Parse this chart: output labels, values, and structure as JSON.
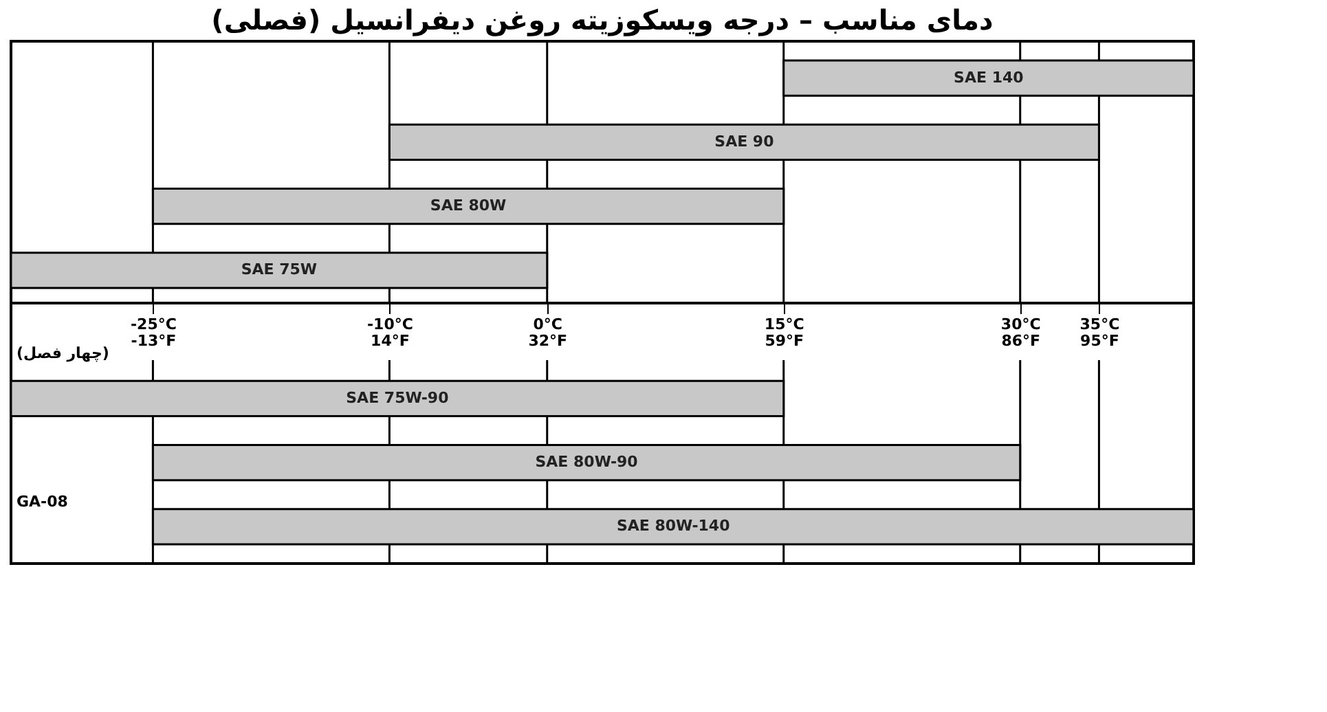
{
  "chart_data": {
    "type": "bar",
    "orientation": "horizontal",
    "title": "دمای مناسب – درجه ویسکوزیته روغن دیفرانسیل (فصلی)",
    "categories": [
      "SAE 140",
      "SAE 90",
      "SAE 80W",
      "SAE 75W",
      "SAE 75W-90",
      "SAE 80W-90",
      "SAE 80W-140"
    ],
    "base": [
      15,
      -10,
      -25,
      -34,
      -34,
      -25,
      -25
    ],
    "values": [
      26,
      45,
      40,
      34,
      49,
      55,
      66
    ],
    "color": "#c8c8c8",
    "xlim": [
      -34,
      41
    ],
    "xticks": [
      {
        "value": -25,
        "label": "-25°C"
      },
      {
        "value": -10,
        "label": "-10°C"
      },
      {
        "value": 0,
        "label": "0°C"
      },
      {
        "value": 15,
        "label": "15°C"
      },
      {
        "value": 30,
        "label": "30°C"
      },
      {
        "value": 35,
        "label": "35°C"
      }
    ],
    "x2lim": [
      -29.2,
      105.8
    ],
    "x2ticks": [
      {
        "value": -13,
        "label": "-13°F"
      },
      {
        "value": 14,
        "label": "14°F"
      },
      {
        "value": 32,
        "label": "32°F"
      },
      {
        "value": 59,
        "label": "59°F"
      },
      {
        "value": 86,
        "label": "86°F"
      },
      {
        "value": 95,
        "label": "95°F"
      }
    ],
    "tick_labels": "x",
    "grid": "x",
    "annotations": [
      "(چهار فصل)",
      "GA-08"
    ]
  }
}
